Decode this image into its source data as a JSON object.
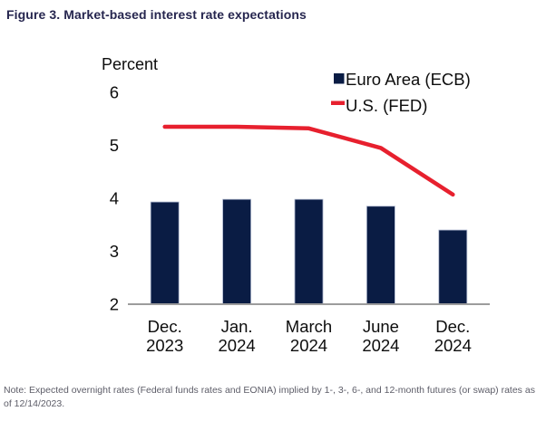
{
  "figure": {
    "title": "Figure 3. Market-based interest rate expectations",
    "note": "Note: Expected overnight rates (Federal funds rates and EONIA) implied by 1-, 3-, 6-, and 12-month futures (or swap) rates as of 12/14/2023."
  },
  "chart_data": {
    "type": "bar",
    "subtype": "bar and line combo",
    "title": "Figure 3. Market-based interest rate expectations",
    "xlabel": "",
    "ylabel": "Percent",
    "categories": [
      "Dec. 2023",
      "Jan. 2024",
      "March 2024",
      "June 2024",
      "Dec. 2024"
    ],
    "series": [
      {
        "name": "Euro Area (ECB)",
        "type": "bar",
        "color": "#0a1c44",
        "values": [
          3.93,
          3.98,
          3.98,
          3.85,
          3.4
        ]
      },
      {
        "name": "U.S. (FED)",
        "type": "line",
        "color": "#e7202e",
        "values": [
          5.35,
          5.35,
          5.32,
          4.95,
          4.07
        ]
      }
    ],
    "ylim": [
      2,
      6
    ],
    "yticks": [
      6,
      5,
      4,
      3,
      2
    ],
    "grid": false,
    "legend_position": "top-right",
    "axis_color": "#9c9c9c"
  }
}
